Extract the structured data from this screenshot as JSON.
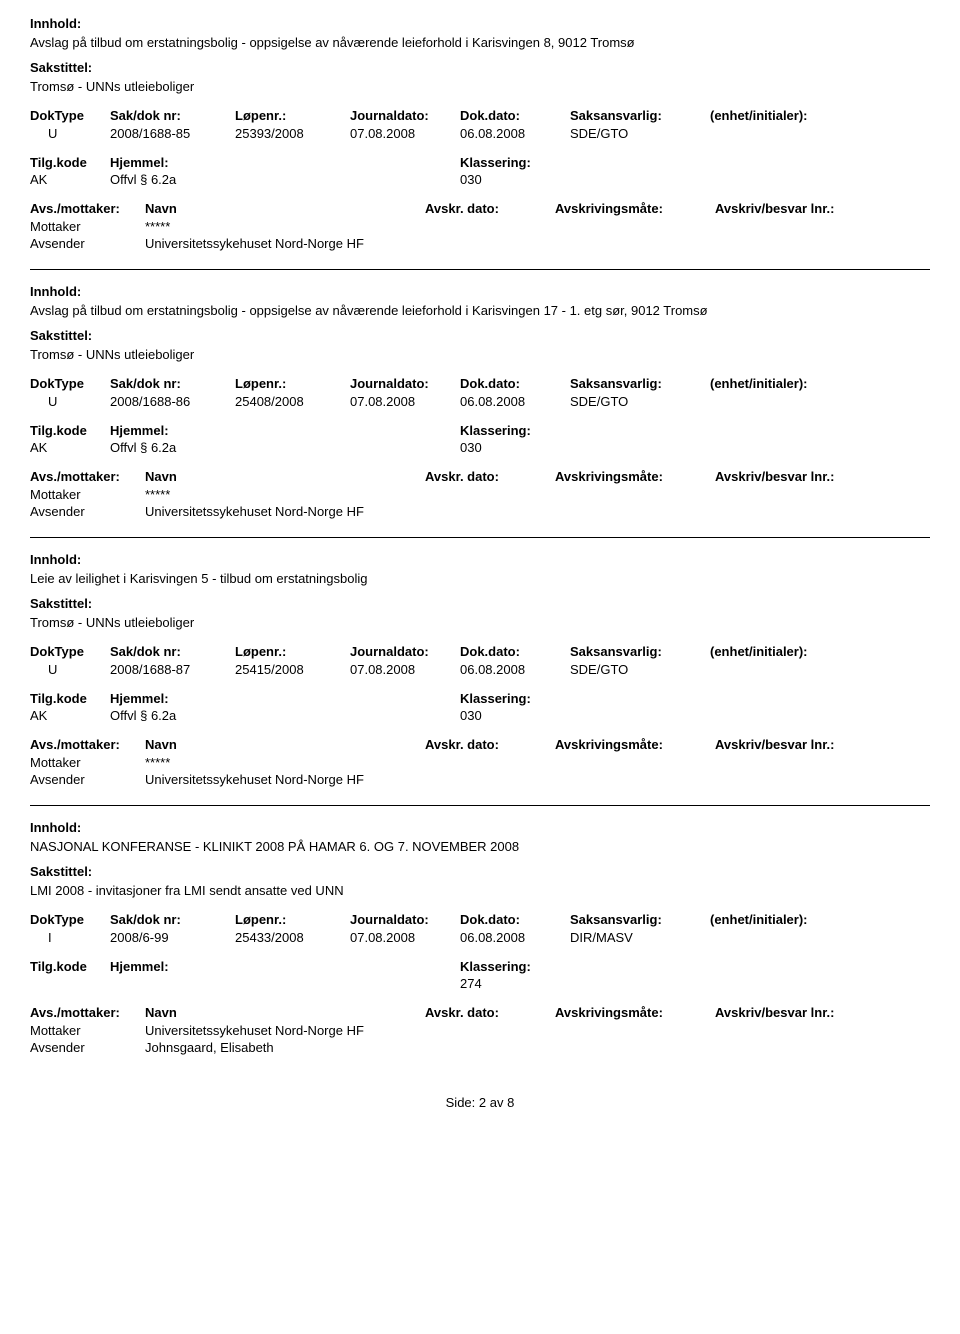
{
  "labels": {
    "innhold": "Innhold:",
    "sakstittel": "Sakstittel:",
    "doktype": "DokType",
    "sakdok": "Sak/dok nr:",
    "lopenr": "Løpenr.:",
    "journaldato": "Journaldato:",
    "dokdato": "Dok.dato:",
    "saksansvarlig": "Saksansvarlig:",
    "enhet": "(enhet/initialer):",
    "tilgkode": "Tilg.kode",
    "hjemmel": "Hjemmel:",
    "klassering": "Klassering:",
    "avsmottaker": "Avs./mottaker:",
    "navn": "Navn",
    "avskrdato": "Avskr. dato:",
    "avskrivingsmate": "Avskrivingsmåte:",
    "avskrivbesvar": "Avskriv/besvar lnr.:",
    "mottaker": "Mottaker",
    "avsender": "Avsender"
  },
  "entries": [
    {
      "innhold": "Avslag på tilbud om erstatningsbolig - oppsigelse av nåværende leieforhold i Karisvingen 8, 9012 Tromsø",
      "sakstittel": "Tromsø - UNNs utleieboliger",
      "doktype": "U",
      "sakdok": "2008/1688-85",
      "lopenr": "25393/2008",
      "journaldato": "07.08.2008",
      "dokdato": "06.08.2008",
      "saksansvarlig": "SDE/GTO",
      "tilgkode": "AK",
      "hjemmel": "Offvl § 6.2a",
      "klassering": "030",
      "parties": [
        {
          "role": "Mottaker",
          "name": "*****"
        },
        {
          "role": "Avsender",
          "name": "Universitetssykehuset Nord-Norge HF"
        }
      ]
    },
    {
      "innhold": "Avslag på tilbud om erstatningsbolig - oppsigelse av nåværende leieforhold i Karisvingen 17 - 1. etg sør, 9012 Tromsø",
      "sakstittel": "Tromsø - UNNs utleieboliger",
      "doktype": "U",
      "sakdok": "2008/1688-86",
      "lopenr": "25408/2008",
      "journaldato": "07.08.2008",
      "dokdato": "06.08.2008",
      "saksansvarlig": "SDE/GTO",
      "tilgkode": "AK",
      "hjemmel": "Offvl § 6.2a",
      "klassering": "030",
      "parties": [
        {
          "role": "Mottaker",
          "name": "*****"
        },
        {
          "role": "Avsender",
          "name": "Universitetssykehuset Nord-Norge HF"
        }
      ]
    },
    {
      "innhold": "Leie av leilighet i Karisvingen 5 - tilbud om erstatningsbolig",
      "sakstittel": "Tromsø - UNNs utleieboliger",
      "doktype": "U",
      "sakdok": "2008/1688-87",
      "lopenr": "25415/2008",
      "journaldato": "07.08.2008",
      "dokdato": "06.08.2008",
      "saksansvarlig": "SDE/GTO",
      "tilgkode": "AK",
      "hjemmel": "Offvl § 6.2a",
      "klassering": "030",
      "parties": [
        {
          "role": "Mottaker",
          "name": "*****"
        },
        {
          "role": "Avsender",
          "name": "Universitetssykehuset Nord-Norge HF"
        }
      ]
    },
    {
      "innhold": "NASJONAL KONFERANSE - KLINIKT 2008 PÅ HAMAR 6. OG 7. NOVEMBER 2008",
      "sakstittel": "LMI 2008 - invitasjoner fra LMI sendt ansatte ved UNN",
      "doktype": "I",
      "sakdok": "2008/6-99",
      "lopenr": "25433/2008",
      "journaldato": "07.08.2008",
      "dokdato": "06.08.2008",
      "saksansvarlig": "DIR/MASV",
      "tilgkode": "",
      "hjemmel": "",
      "klassering": "274",
      "parties": [
        {
          "role": "Mottaker",
          "name": "Universitetssykehuset Nord-Norge HF"
        },
        {
          "role": "Avsender",
          "name": "Johnsgaard, Elisabeth"
        }
      ]
    }
  ],
  "footer": {
    "side_label": "Side:",
    "current": "2",
    "sep": "av",
    "total": "8"
  }
}
